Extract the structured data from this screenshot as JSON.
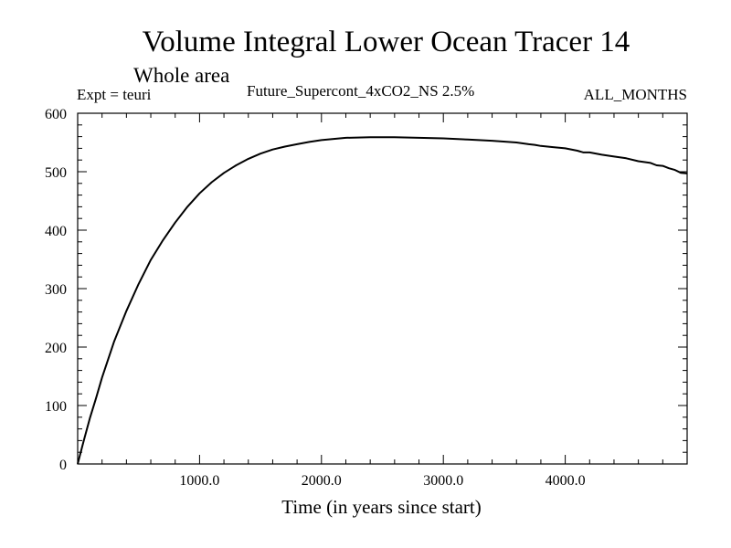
{
  "header": {
    "title": "Volume Integral Lower Ocean Tracer 14",
    "subtitle": "Whole area",
    "expt": "Expt = teuri",
    "scenario": "Future_Supercont_4xCO2_NS 2.5%",
    "months": "ALL_MONTHS"
  },
  "chart_data": {
    "type": "line",
    "title": "Volume Integral Lower Ocean Tracer 14",
    "subtitle": "Whole area",
    "xlabel": "Time (in years since start)",
    "ylabel": "",
    "xlim": [
      0,
      5000
    ],
    "ylim": [
      0,
      600
    ],
    "x_ticks": [
      1000,
      2000,
      3000,
      4000
    ],
    "x_tick_labels": [
      "1000.0",
      "2000.0",
      "3000.0",
      "4000.0"
    ],
    "y_ticks": [
      0,
      100,
      200,
      300,
      400,
      500,
      600
    ],
    "y_tick_labels": [
      "0",
      "100",
      "200",
      "300",
      "400",
      "500",
      "600"
    ],
    "grid": false,
    "series": [
      {
        "color": "#000000",
        "x": [
          0,
          50,
          100,
          150,
          200,
          300,
          400,
          500,
          600,
          700,
          800,
          900,
          1000,
          1100,
          1200,
          1300,
          1400,
          1500,
          1600,
          1700,
          1800,
          1900,
          2000,
          2200,
          2400,
          2600,
          2800,
          3000,
          3200,
          3400,
          3600,
          3700,
          3750,
          3800,
          3900,
          4000,
          4100,
          4150,
          4200,
          4300,
          4400,
          4500,
          4600,
          4700,
          4750,
          4800,
          4850,
          4900,
          4950,
          5000
        ],
        "y": [
          0,
          40,
          78,
          112,
          148,
          210,
          262,
          308,
          349,
          383,
          413,
          440,
          463,
          482,
          498,
          511,
          522,
          531,
          538,
          543,
          547,
          551,
          554,
          558,
          559,
          559,
          558,
          557,
          555,
          553,
          550,
          547,
          546,
          544,
          542,
          540,
          536,
          533,
          533,
          529,
          526,
          523,
          518,
          515,
          511,
          510,
          506,
          503,
          498,
          497
        ]
      }
    ]
  }
}
